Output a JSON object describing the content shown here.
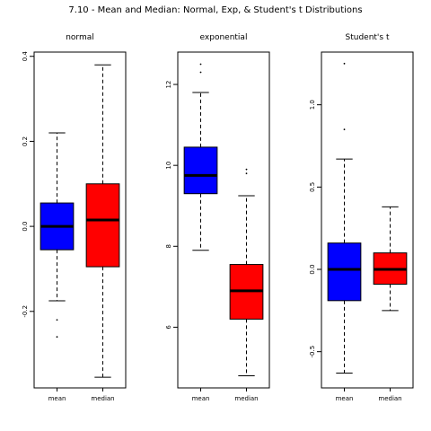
{
  "chart_data": {
    "type": "boxplot",
    "title": "7.10 - Mean and Median: Normal, Exp, & Student's t Distributions",
    "panels": [
      {
        "title": "normal",
        "categories": [
          "mean",
          "median"
        ],
        "colors": [
          "#0000FF",
          "#FF0000"
        ],
        "ylim": [
          -0.38,
          0.41
        ],
        "yticks": [
          -0.2,
          0.0,
          0.2,
          0.4
        ],
        "ytick_labels": [
          "-0.2",
          "0.0",
          "0.2",
          "0.4"
        ],
        "boxes": [
          {
            "whisker_low": -0.175,
            "q1": -0.055,
            "median": 0.0,
            "q3": 0.055,
            "whisker_high": 0.22,
            "outliers": [
              -0.22,
              -0.26
            ]
          },
          {
            "whisker_low": -0.355,
            "q1": -0.095,
            "median": 0.015,
            "q3": 0.1,
            "whisker_high": 0.38,
            "outliers": []
          }
        ]
      },
      {
        "title": "exponential",
        "categories": [
          "mean",
          "median"
        ],
        "colors": [
          "#0000FF",
          "#FF0000"
        ],
        "ylim": [
          4.5,
          12.8
        ],
        "yticks": [
          6,
          8,
          10,
          12
        ],
        "ytick_labels": [
          "6",
          "8",
          "10",
          "12"
        ],
        "boxes": [
          {
            "whisker_low": 7.9,
            "q1": 9.3,
            "median": 9.75,
            "q3": 10.45,
            "whisker_high": 11.8,
            "outliers": [
              12.3,
              12.5
            ]
          },
          {
            "whisker_low": 4.8,
            "q1": 6.2,
            "median": 6.9,
            "q3": 7.55,
            "whisker_high": 9.25,
            "outliers": [
              9.8,
              9.9
            ]
          }
        ]
      },
      {
        "title": "Student's t",
        "categories": [
          "mean",
          "median"
        ],
        "colors": [
          "#0000FF",
          "#FF0000"
        ],
        "ylim": [
          -0.72,
          1.32
        ],
        "yticks": [
          -0.5,
          0.0,
          0.5,
          1.0
        ],
        "ytick_labels": [
          "-0.5",
          "0.0",
          "0.5",
          "1.0"
        ],
        "boxes": [
          {
            "whisker_low": -0.63,
            "q1": -0.19,
            "median": 0.0,
            "q3": 0.16,
            "whisker_high": 0.67,
            "outliers": [
              0.85,
              1.25
            ]
          },
          {
            "whisker_low": -0.25,
            "q1": -0.09,
            "median": 0.0,
            "q3": 0.1,
            "whisker_high": 0.38,
            "outliers": []
          }
        ]
      }
    ]
  }
}
